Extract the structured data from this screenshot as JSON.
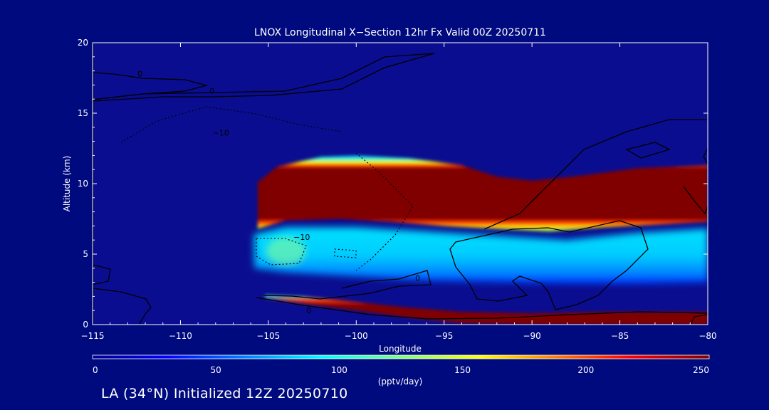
{
  "chart_data": {
    "type": "heatmap",
    "title": "LNOX Longitudinal X−Section 12hr  Fx Valid 00Z 20250711",
    "xlabel": "Longitude",
    "ylabel": "Altitude (km)",
    "xlim": [
      -115,
      -80
    ],
    "ylim": [
      0,
      20
    ],
    "x_ticks": [
      -115,
      -110,
      -105,
      -100,
      -95,
      -90,
      -85,
      -80
    ],
    "x_tick_labels": [
      "−115",
      "−110",
      "−105",
      "−100",
      "−95",
      "−90",
      "−85",
      "−80"
    ],
    "y_ticks": [
      0,
      5,
      10,
      15,
      20
    ],
    "y_tick_labels": [
      "0",
      "5",
      "10",
      "15",
      "20"
    ],
    "colorbar": {
      "label": "(pptv/day)",
      "range": [
        0,
        250
      ],
      "ticks": [
        0,
        50,
        100,
        150,
        200,
        250
      ],
      "tick_labels": [
        "0",
        "50",
        "100",
        "150",
        "200",
        "250"
      ],
      "colormap": "jet"
    },
    "field_layers": [
      {
        "name": "upper-core",
        "value": 250,
        "lon_start": -105.6,
        "lon_end": -80,
        "top": [
          [
            -105.6,
            10.1
          ],
          [
            -104.5,
            11.2
          ],
          [
            -102,
            11.9
          ],
          [
            -100,
            12.0
          ],
          [
            -97,
            11.8
          ],
          [
            -94,
            11.3
          ],
          [
            -92,
            10.5
          ],
          [
            -90,
            10.2
          ],
          [
            -87,
            10.6
          ],
          [
            -84,
            11.1
          ],
          [
            -80,
            11.3
          ]
        ],
        "bottom": [
          [
            -105.6,
            6.8
          ],
          [
            -104,
            7.4
          ],
          [
            -101,
            7.5
          ],
          [
            -98,
            7.3
          ],
          [
            -95,
            7.0
          ],
          [
            -92,
            6.8
          ],
          [
            -89,
            6.6
          ],
          [
            -86,
            6.9
          ],
          [
            -83,
            7.1
          ],
          [
            -80,
            7.3
          ]
        ]
      },
      {
        "name": "mid-layer",
        "value": 80,
        "lon_start": -105.8,
        "lon_end": -80,
        "top": [
          [
            -105.8,
            6.4
          ],
          [
            -104,
            6.9
          ],
          [
            -100,
            6.9
          ],
          [
            -96,
            6.6
          ],
          [
            -92,
            6.3
          ],
          [
            -88,
            6.0
          ],
          [
            -84,
            6.5
          ],
          [
            -80,
            6.8
          ]
        ],
        "bottom": [
          [
            -105.8,
            4.0
          ],
          [
            -104,
            3.7
          ],
          [
            -100,
            3.4
          ],
          [
            -96,
            3.1
          ],
          [
            -92,
            3.0
          ],
          [
            -88,
            2.9
          ],
          [
            -84,
            2.9
          ],
          [
            -80,
            3.0
          ]
        ]
      },
      {
        "name": "surface-layer",
        "value": 230,
        "lon_start": -105.2,
        "lon_end": -80,
        "top": [
          [
            -105.2,
            2.1
          ],
          [
            -103,
            2.0
          ],
          [
            -100,
            1.6
          ],
          [
            -97,
            1.2
          ],
          [
            -94,
            0.9
          ],
          [
            -90,
            0.8
          ],
          [
            -86,
            0.9
          ],
          [
            -83,
            0.9
          ],
          [
            -80,
            0.9
          ]
        ],
        "bottom": [
          [
            -105.2,
            1.9
          ],
          [
            -103,
            1.5
          ],
          [
            -100,
            1.0
          ],
          [
            -97,
            0.5
          ],
          [
            -94,
            0.1
          ],
          [
            -90,
            0.0
          ],
          [
            -80,
            0.0
          ]
        ]
      }
    ],
    "contour_labels": [
      "0",
      "0",
      "0",
      "0",
      "−10",
      "−10"
    ],
    "footer": "LA (34°N) Initialized 12Z 20250710"
  }
}
